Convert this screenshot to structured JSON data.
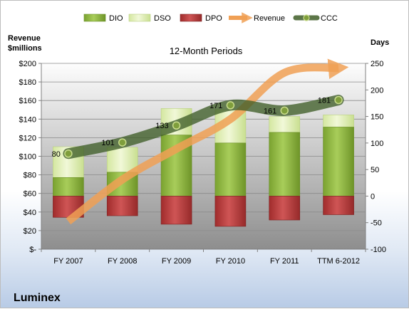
{
  "company": "Luminex",
  "chart_data": {
    "type": "bar",
    "title": "12-Month Periods",
    "ylabel_left_line1": "Revenue",
    "ylabel_left_line2": "$millions",
    "ylabel_right": "Days",
    "categories": [
      "FY 2007",
      "FY 2008",
      "FY 2009",
      "FY 2010",
      "FY 2011",
      "TTM 6-2012"
    ],
    "left_axis": {
      "min": 0,
      "max": 200,
      "step": 20,
      "ticks": [
        "$-",
        "$20",
        "$40",
        "$60",
        "$80",
        "$100",
        "$120",
        "$140",
        "$160",
        "$180",
        "$200"
      ]
    },
    "right_axis": {
      "min": -100,
      "max": 250,
      "step": 50,
      "ticks": [
        "-100",
        "-50",
        "0",
        "50",
        "100",
        "150",
        "200",
        "250"
      ]
    },
    "legend": {
      "position": "top",
      "entries": [
        "DIO",
        "DSO",
        "DPO",
        "Revenue",
        "CCC"
      ]
    },
    "colors": {
      "DIO": "#8fb341",
      "DSO": "#e4f0c0",
      "DPO": "#b23a3a",
      "Revenue": "#f0a055",
      "CCC": "#4a6a30"
    },
    "series": [
      {
        "name": "DIO",
        "axis": "right",
        "stacked_from": 0,
        "values": [
          35,
          45,
          115,
          100,
          120,
          130
        ]
      },
      {
        "name": "DSO",
        "axis": "right",
        "values": [
          58,
          47,
          50,
          63,
          30,
          23
        ]
      },
      {
        "name": "DPO",
        "axis": "right",
        "values": [
          -40,
          -37,
          -53,
          -57,
          -45,
          -35
        ]
      },
      {
        "name": "Revenue",
        "axis": "left",
        "values": [
          30,
          75,
          108,
          140,
          190,
          195
        ]
      },
      {
        "name": "CCC",
        "axis": "right",
        "values": [
          80,
          101,
          133,
          171,
          161,
          181
        ]
      }
    ],
    "data_labels": [
      "80",
      "101",
      "133",
      "171",
      "161",
      "181"
    ],
    "grid": true
  }
}
